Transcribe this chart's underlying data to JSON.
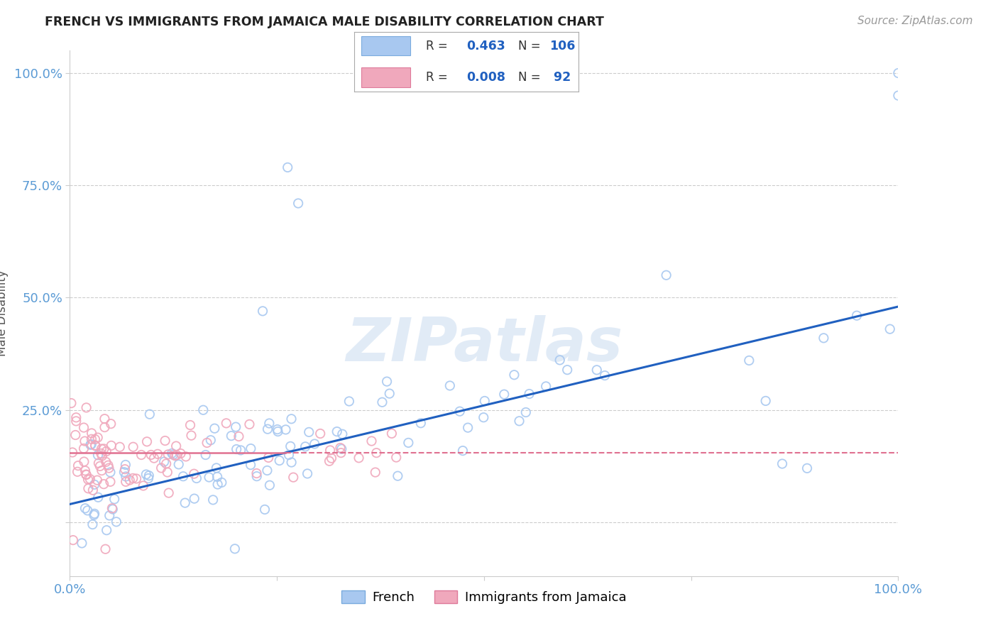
{
  "title": "FRENCH VS IMMIGRANTS FROM JAMAICA MALE DISABILITY CORRELATION CHART",
  "source": "Source: ZipAtlas.com",
  "ylabel": "Male Disability",
  "xlim": [
    0.0,
    1.0
  ],
  "ylim": [
    -0.12,
    1.05
  ],
  "french_color": "#a8c8f0",
  "french_edge_color": "#7aabde",
  "jamaica_color": "#f0a8bc",
  "jamaica_edge_color": "#de7a9a",
  "french_line_color": "#2060c0",
  "jamaica_line_color": "#e07090",
  "french_R": 0.463,
  "french_N": 106,
  "jamaica_R": 0.008,
  "jamaica_N": 92,
  "watermark": "ZIPatlas",
  "background_color": "#ffffff",
  "grid_color": "#cccccc",
  "tick_color": "#5b9bd5",
  "legend_french_color": "#a8c8f0",
  "legend_jamaica_color": "#f0a8bc",
  "french_line_slope": 0.44,
  "french_line_intercept": 0.04,
  "jamaica_line_y": 0.155,
  "jamaica_line_x_end": 0.38
}
